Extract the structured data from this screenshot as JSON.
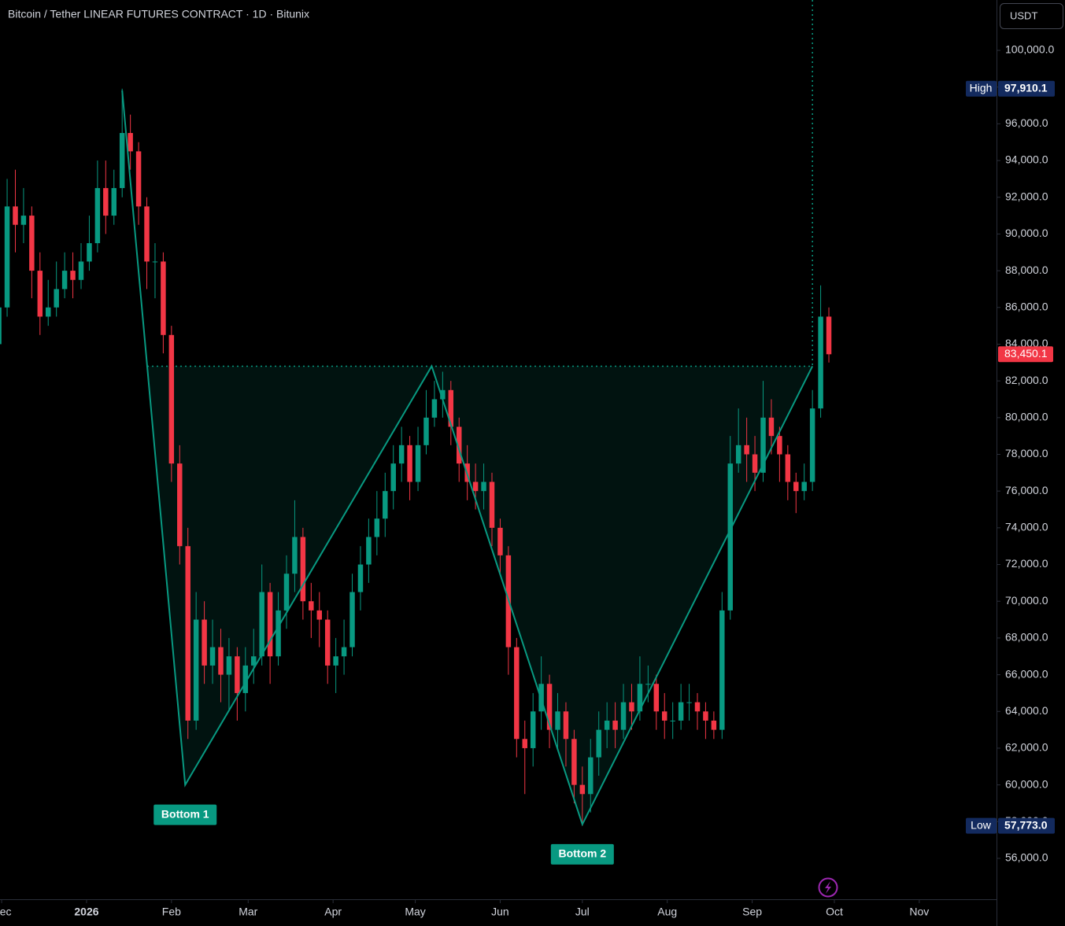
{
  "chart_data": {
    "type": "candlestick",
    "title": "Bitcoin / Tether LINEAR FUTURES CONTRACT · 1D · Bitunix",
    "currency": "USDT",
    "up_color": "#089981",
    "down_color": "#f23645",
    "xlim": [
      -31.6,
      332.2
    ],
    "ylim": [
      53772,
      102742
    ],
    "xticks": [
      {
        "value": -31,
        "label": "Dec"
      },
      {
        "value": 0,
        "label": "2026"
      },
      {
        "value": 31,
        "label": "Feb"
      },
      {
        "value": 59,
        "label": "Mar"
      },
      {
        "value": 90,
        "label": "Apr"
      },
      {
        "value": 120,
        "label": "May"
      },
      {
        "value": 151,
        "label": "Jun"
      },
      {
        "value": 181,
        "label": "Jul"
      },
      {
        "value": 212,
        "label": "Aug"
      },
      {
        "value": 243,
        "label": "Sep"
      },
      {
        "value": 273,
        "label": "Oct"
      },
      {
        "value": 304,
        "label": "Nov"
      }
    ],
    "yticks": [
      {
        "value": 56000,
        "label": "56,000.0"
      },
      {
        "value": 58000,
        "label": "58,000.0"
      },
      {
        "value": 60000,
        "label": "60,000.0"
      },
      {
        "value": 62000,
        "label": "62,000.0"
      },
      {
        "value": 64000,
        "label": "64,000.0"
      },
      {
        "value": 66000,
        "label": "66,000.0"
      },
      {
        "value": 68000,
        "label": "68,000.0"
      },
      {
        "value": 70000,
        "label": "70,000.0"
      },
      {
        "value": 72000,
        "label": "72,000.0"
      },
      {
        "value": 74000,
        "label": "74,000.0"
      },
      {
        "value": 76000,
        "label": "76,000.0"
      },
      {
        "value": 78000,
        "label": "78,000.0"
      },
      {
        "value": 80000,
        "label": "80,000.0"
      },
      {
        "value": 82000,
        "label": "82,000.0"
      },
      {
        "value": 84000,
        "label": "84,000.0"
      },
      {
        "value": 86000,
        "label": "86,000.0"
      },
      {
        "value": 88000,
        "label": "88,000.0"
      },
      {
        "value": 90000,
        "label": "90,000.0"
      },
      {
        "value": 92000,
        "label": "92,000.0"
      },
      {
        "value": 94000,
        "label": "94,000.0"
      },
      {
        "value": 96000,
        "label": "96,000.0"
      },
      {
        "value": 98000,
        "label": "98,000.0"
      },
      {
        "value": 100000,
        "label": "100,000.0"
      }
    ],
    "x": [
      -32,
      -29,
      -26,
      -23,
      -20,
      -17,
      -14,
      -11,
      -8,
      -5,
      -2,
      1,
      4,
      7,
      10,
      13,
      16,
      19,
      22,
      25,
      28,
      31,
      34,
      37,
      40,
      43,
      46,
      49,
      52,
      55,
      58,
      61,
      64,
      67,
      70,
      73,
      76,
      79,
      82,
      85,
      88,
      91,
      94,
      97,
      100,
      103,
      106,
      109,
      112,
      115,
      118,
      121,
      124,
      127,
      130,
      133,
      136,
      139,
      142,
      145,
      148,
      151,
      154,
      157,
      160,
      163,
      166,
      169,
      172,
      175,
      178,
      181,
      184,
      187,
      190,
      193,
      196,
      199,
      202,
      205,
      208,
      211,
      214,
      217,
      220,
      223,
      226,
      229,
      232,
      235,
      238,
      241,
      244,
      247,
      250,
      253,
      256,
      259,
      262,
      265,
      268,
      271
    ],
    "open": [
      84000,
      86000,
      91500,
      90500,
      91000,
      88000,
      85500,
      86000,
      87000,
      88000,
      87500,
      88500,
      89500,
      92500,
      91000,
      92500,
      95500,
      94500,
      91500,
      88500,
      88500,
      84500,
      77500,
      73000,
      63500,
      69000,
      66500,
      67500,
      66000,
      67000,
      65000,
      66500,
      67000,
      70500,
      67000,
      69500,
      71500,
      73500,
      70000,
      69500,
      69000,
      66500,
      67000,
      67500,
      70500,
      72000,
      73500,
      74500,
      76000,
      77500,
      78500,
      76500,
      78500,
      80000,
      81000,
      81500,
      79500,
      77500,
      76500,
      76000,
      76500,
      74000,
      72500,
      67500,
      62500,
      62000,
      64000,
      65500,
      63000,
      64000,
      62500,
      60000,
      59500,
      61500,
      63000,
      63500,
      63000,
      64500,
      64000,
      65500,
      65500,
      64000,
      63500,
      63500,
      64500,
      64500,
      64000,
      63500,
      63000,
      69500,
      77500,
      78500,
      78000,
      77000,
      80000,
      79000,
      78000,
      76500,
      76000,
      76500,
      80500,
      85500
    ],
    "high": [
      87500,
      93000,
      93500,
      92500,
      91500,
      89000,
      87500,
      88500,
      89000,
      89000,
      89500,
      91000,
      94000,
      94000,
      93500,
      97910.1,
      96500,
      95000,
      92000,
      89500,
      89000,
      85000,
      78500,
      74000,
      70500,
      70000,
      69000,
      68500,
      68000,
      67500,
      67500,
      68500,
      72000,
      71000,
      70500,
      72500,
      75500,
      74000,
      71000,
      70500,
      69500,
      68000,
      69000,
      71500,
      73000,
      74500,
      76000,
      77000,
      78500,
      79500,
      79000,
      79500,
      81500,
      82000,
      82500,
      82000,
      80000,
      78500,
      77500,
      77500,
      77000,
      74500,
      73000,
      68000,
      63500,
      65000,
      67000,
      66000,
      65000,
      64500,
      63000,
      61000,
      62500,
      64000,
      64500,
      64500,
      65500,
      65500,
      67000,
      66500,
      66000,
      65000,
      64500,
      65500,
      65500,
      65000,
      64500,
      64000,
      70500,
      79000,
      80500,
      80000,
      79000,
      82000,
      81000,
      79500,
      78500,
      77000,
      77500,
      81500,
      87200,
      86000
    ],
    "low": [
      83000,
      85500,
      89000,
      89500,
      86500,
      84500,
      85000,
      85500,
      86500,
      86500,
      87000,
      88000,
      89000,
      90000,
      90500,
      92000,
      93500,
      90500,
      87000,
      86500,
      83500,
      76500,
      72000,
      62500,
      63000,
      65500,
      65500,
      64500,
      64000,
      63500,
      64000,
      65500,
      66500,
      65500,
      66500,
      68500,
      70500,
      69000,
      68000,
      67500,
      65500,
      65000,
      66000,
      67000,
      69500,
      71000,
      72500,
      73500,
      75000,
      76500,
      75500,
      76000,
      78000,
      79500,
      80000,
      78500,
      76500,
      75500,
      75000,
      75000,
      73000,
      71500,
      66000,
      61500,
      59500,
      61000,
      63000,
      62000,
      62000,
      61000,
      59000,
      57773,
      58500,
      60500,
      62000,
      62000,
      62500,
      63000,
      63500,
      64500,
      63000,
      62500,
      62500,
      63000,
      63500,
      63000,
      62500,
      62500,
      62500,
      69000,
      77000,
      76500,
      76000,
      76500,
      78000,
      76500,
      75500,
      74800,
      75500,
      76000,
      80000,
      83000
    ],
    "close": [
      86000,
      91500,
      90500,
      91000,
      88000,
      85500,
      86000,
      87000,
      88000,
      87500,
      88500,
      89500,
      92500,
      91000,
      92500,
      95500,
      94500,
      91500,
      88500,
      88500,
      84500,
      77500,
      73000,
      63500,
      69000,
      66500,
      67500,
      66000,
      67000,
      65000,
      66500,
      67000,
      70500,
      67000,
      69500,
      71500,
      73500,
      70000,
      69500,
      69000,
      66500,
      67000,
      67500,
      70500,
      72000,
      73500,
      74500,
      76000,
      77500,
      78500,
      76500,
      78500,
      80000,
      81000,
      81500,
      79500,
      77500,
      76500,
      76000,
      76500,
      74000,
      72500,
      67500,
      62500,
      62000,
      64000,
      65500,
      63000,
      64000,
      62500,
      60000,
      59500,
      61500,
      63000,
      63500,
      63000,
      64500,
      64000,
      65500,
      65500,
      64000,
      63500,
      63500,
      64500,
      64500,
      64000,
      63500,
      63000,
      69500,
      77500,
      78500,
      78000,
      77000,
      80000,
      79000,
      78000,
      76500,
      76000,
      76500,
      80500,
      85500,
      83450.1
    ],
    "last_price": {
      "value": 83450.1,
      "label": "83,450.1"
    },
    "extremes": [
      {
        "name": "High",
        "value": 97910.1,
        "label": "97,910.1"
      },
      {
        "name": "Low",
        "value": 57773,
        "label": "57,773.0"
      }
    ],
    "pattern": {
      "color": "#089981",
      "points": [
        {
          "x": 13,
          "y": 97815
        },
        {
          "x": 36,
          "y": 60000
        },
        {
          "x": 126,
          "y": 82800
        },
        {
          "x": 181,
          "y": 57850
        },
        {
          "x": 265,
          "y": 82800
        }
      ],
      "labels": [
        "Bottom 1",
        "Bottom 2"
      ]
    }
  }
}
